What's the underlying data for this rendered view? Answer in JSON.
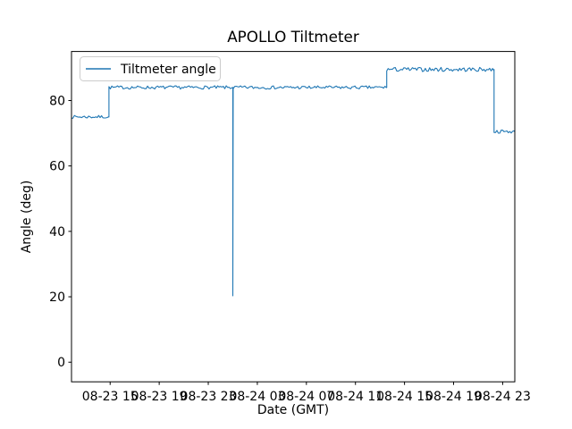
{
  "figure": {
    "background": "#ffffff",
    "spine_color": "#000000",
    "text_color": "#000000"
  },
  "chart_data": {
    "type": "line",
    "title": "APOLLO Tiltmeter",
    "xlabel": "Date (GMT)",
    "ylabel": "Angle (deg)",
    "grid": false,
    "legend": {
      "position": "upper-left",
      "entries": [
        "Tiltmeter angle"
      ]
    },
    "axes": {
      "ylim": [
        -6,
        95
      ],
      "yticks": [
        0,
        20,
        40,
        60,
        80
      ],
      "x_unit": "hours since 08-23 00:00 GMT",
      "xlim_hours": [
        11.85,
        47.99
      ],
      "xticks": [
        {
          "hour": 15,
          "label": "08-23 15"
        },
        {
          "hour": 19,
          "label": "08-23 19"
        },
        {
          "hour": 23,
          "label": "08-23 23"
        },
        {
          "hour": 27,
          "label": "08-24 03"
        },
        {
          "hour": 31,
          "label": "08-24 07"
        },
        {
          "hour": 35,
          "label": "08-24 11"
        },
        {
          "hour": 39,
          "label": "08-24 15"
        },
        {
          "hour": 43,
          "label": "08-24 19"
        },
        {
          "hour": 47,
          "label": "08-24 23"
        }
      ]
    },
    "series": [
      {
        "name": "Tiltmeter angle",
        "color": "#1f77b4",
        "segments": [
          {
            "start_hour": 11.85,
            "end_hour": 14.9,
            "angle_deg": 75.0,
            "noise_deg": 0.45
          },
          {
            "start_hour": 14.9,
            "end_hour": 37.55,
            "angle_deg": 84.0,
            "noise_deg": 0.5
          },
          {
            "start_hour": 37.55,
            "end_hour": 46.3,
            "angle_deg": 89.5,
            "noise_deg": 0.65
          },
          {
            "start_hour": 46.3,
            "end_hour": 47.95,
            "angle_deg": 70.5,
            "noise_deg": 0.5
          }
        ],
        "spikes": [
          {
            "hour": 25.0,
            "min_angle_deg": 20.3
          }
        ]
      }
    ]
  }
}
